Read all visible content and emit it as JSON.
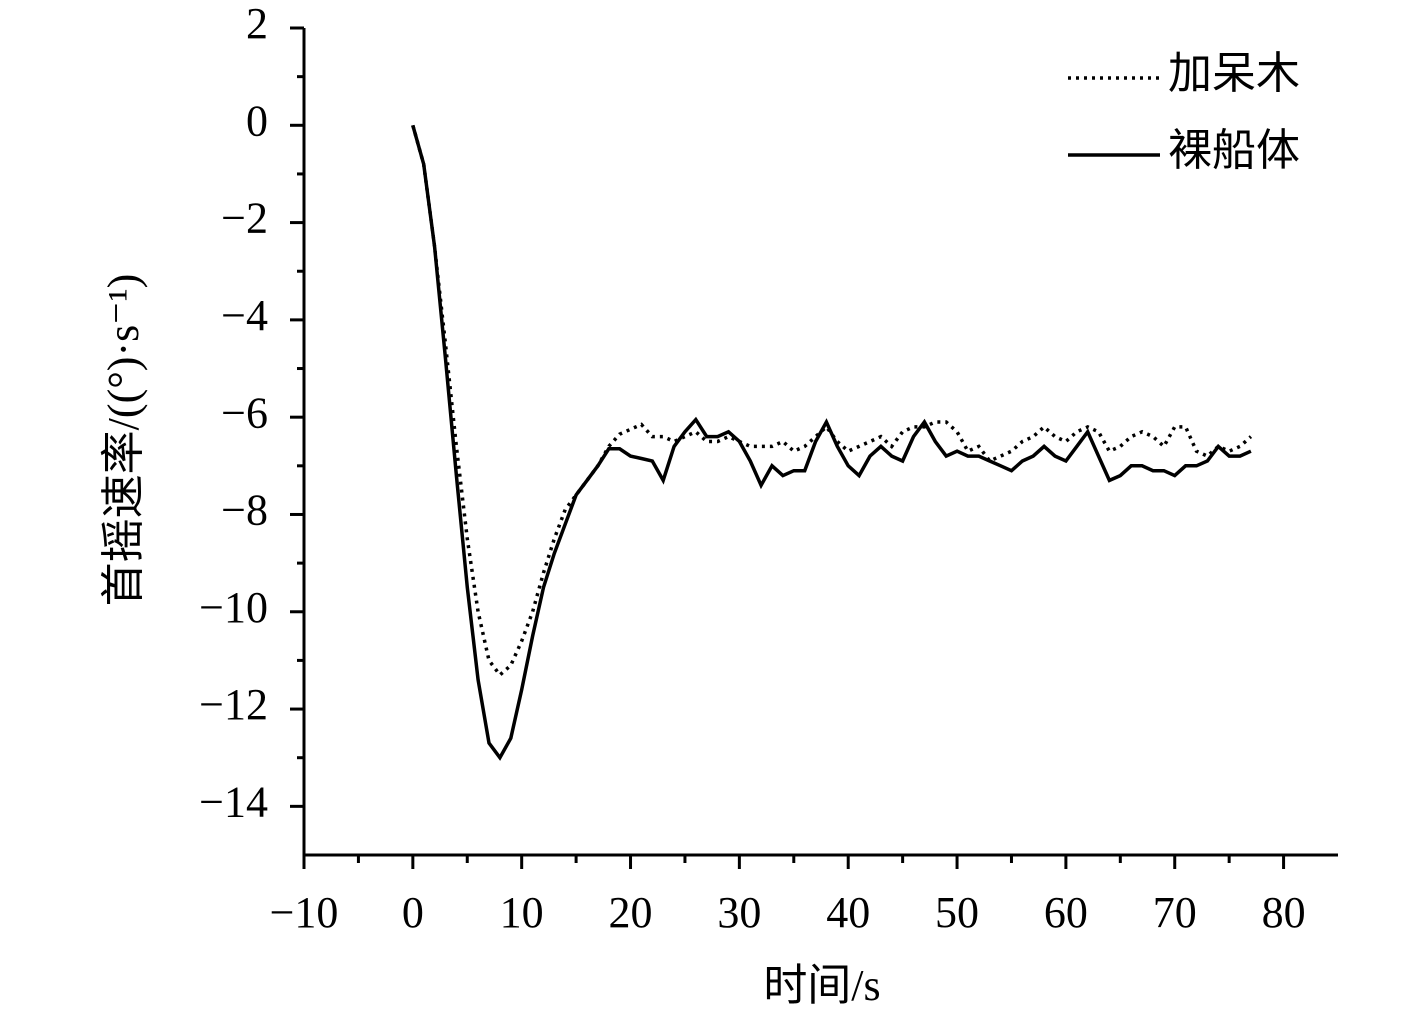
{
  "chart_data": {
    "type": "line",
    "xlabel": "时间/s",
    "ylabel": "首摇速率/((°)·s⁻¹)",
    "xlim": [
      -10,
      85
    ],
    "ylim": [
      -15,
      2
    ],
    "xticks": [
      {
        "value": -10,
        "label": "−10"
      },
      0,
      10,
      20,
      30,
      40,
      50,
      60,
      70,
      80
    ],
    "yticks": [
      2,
      0,
      {
        "value": -2,
        "label": "−2"
      },
      {
        "value": -4,
        "label": "−4"
      },
      {
        "value": -6,
        "label": "−6"
      },
      {
        "value": -8,
        "label": "−8"
      },
      {
        "value": -10,
        "label": "−10"
      },
      {
        "value": -12,
        "label": "−12"
      },
      {
        "value": -14,
        "label": "−14"
      }
    ],
    "grid": false,
    "legend": "upper right",
    "x": [
      0,
      1,
      2,
      3,
      4,
      5,
      6,
      7,
      8,
      9,
      10,
      11,
      12,
      13,
      14,
      15,
      16,
      17,
      18,
      19,
      20,
      21,
      22,
      23,
      24,
      25,
      26,
      27,
      28,
      29,
      30,
      31,
      32,
      33,
      34,
      35,
      36,
      37,
      38,
      39,
      40,
      41,
      42,
      43,
      44,
      45,
      46,
      47,
      48,
      49,
      50,
      51,
      52,
      53,
      54,
      55,
      56,
      57,
      58,
      59,
      60,
      61,
      62,
      63,
      64,
      65,
      66,
      67,
      68,
      69,
      70,
      71,
      72,
      73,
      74,
      75,
      76,
      77
    ],
    "series": [
      {
        "name": "加呆木",
        "color": "#000000",
        "line_style": "dotted",
        "values": [
          0,
          -0.8,
          -2.5,
          -4.5,
          -6.6,
          -8.5,
          -10.0,
          -11.0,
          -11.3,
          -11.1,
          -10.6,
          -10.0,
          -9.2,
          -8.5,
          -7.9,
          -7.6,
          -7.3,
          -7.0,
          -6.6,
          -6.35,
          -6.25,
          -6.15,
          -6.4,
          -6.4,
          -6.5,
          -6.4,
          -6.3,
          -6.5,
          -6.5,
          -6.4,
          -6.5,
          -6.6,
          -6.6,
          -6.6,
          -6.5,
          -6.7,
          -6.6,
          -6.4,
          -6.2,
          -6.5,
          -6.7,
          -6.6,
          -6.5,
          -6.4,
          -6.6,
          -6.3,
          -6.2,
          -6.2,
          -6.1,
          -6.1,
          -6.3,
          -6.7,
          -6.6,
          -6.9,
          -6.8,
          -6.7,
          -6.5,
          -6.4,
          -6.2,
          -6.4,
          -6.5,
          -6.3,
          -6.2,
          -6.3,
          -6.7,
          -6.6,
          -6.4,
          -6.3,
          -6.4,
          -6.6,
          -6.2,
          -6.2,
          -6.7,
          -6.8,
          -6.6,
          -6.7,
          -6.6,
          -6.4
        ]
      },
      {
        "name": "裸船体",
        "color": "#000000",
        "line_style": "solid",
        "values": [
          0,
          -0.8,
          -2.5,
          -4.8,
          -7.2,
          -9.5,
          -11.4,
          -12.7,
          -13.0,
          -12.6,
          -11.6,
          -10.5,
          -9.5,
          -8.8,
          -8.2,
          -7.6,
          -7.3,
          -7.0,
          -6.65,
          -6.65,
          -6.8,
          -6.85,
          -6.9,
          -7.3,
          -6.6,
          -6.3,
          -6.05,
          -6.4,
          -6.4,
          -6.3,
          -6.5,
          -6.9,
          -7.4,
          -7.0,
          -7.2,
          -7.1,
          -7.1,
          -6.5,
          -6.1,
          -6.6,
          -7.0,
          -7.2,
          -6.8,
          -6.6,
          -6.8,
          -6.9,
          -6.4,
          -6.1,
          -6.5,
          -6.8,
          -6.7,
          -6.8,
          -6.8,
          -6.9,
          -7.0,
          -7.1,
          -6.9,
          -6.8,
          -6.6,
          -6.8,
          -6.9,
          -6.6,
          -6.3,
          -6.8,
          -7.3,
          -7.2,
          -7.0,
          -7.0,
          -7.1,
          -7.1,
          -7.2,
          -7.0,
          -7.0,
          -6.9,
          -6.6,
          -6.8,
          -6.8,
          -6.7
        ]
      }
    ]
  }
}
